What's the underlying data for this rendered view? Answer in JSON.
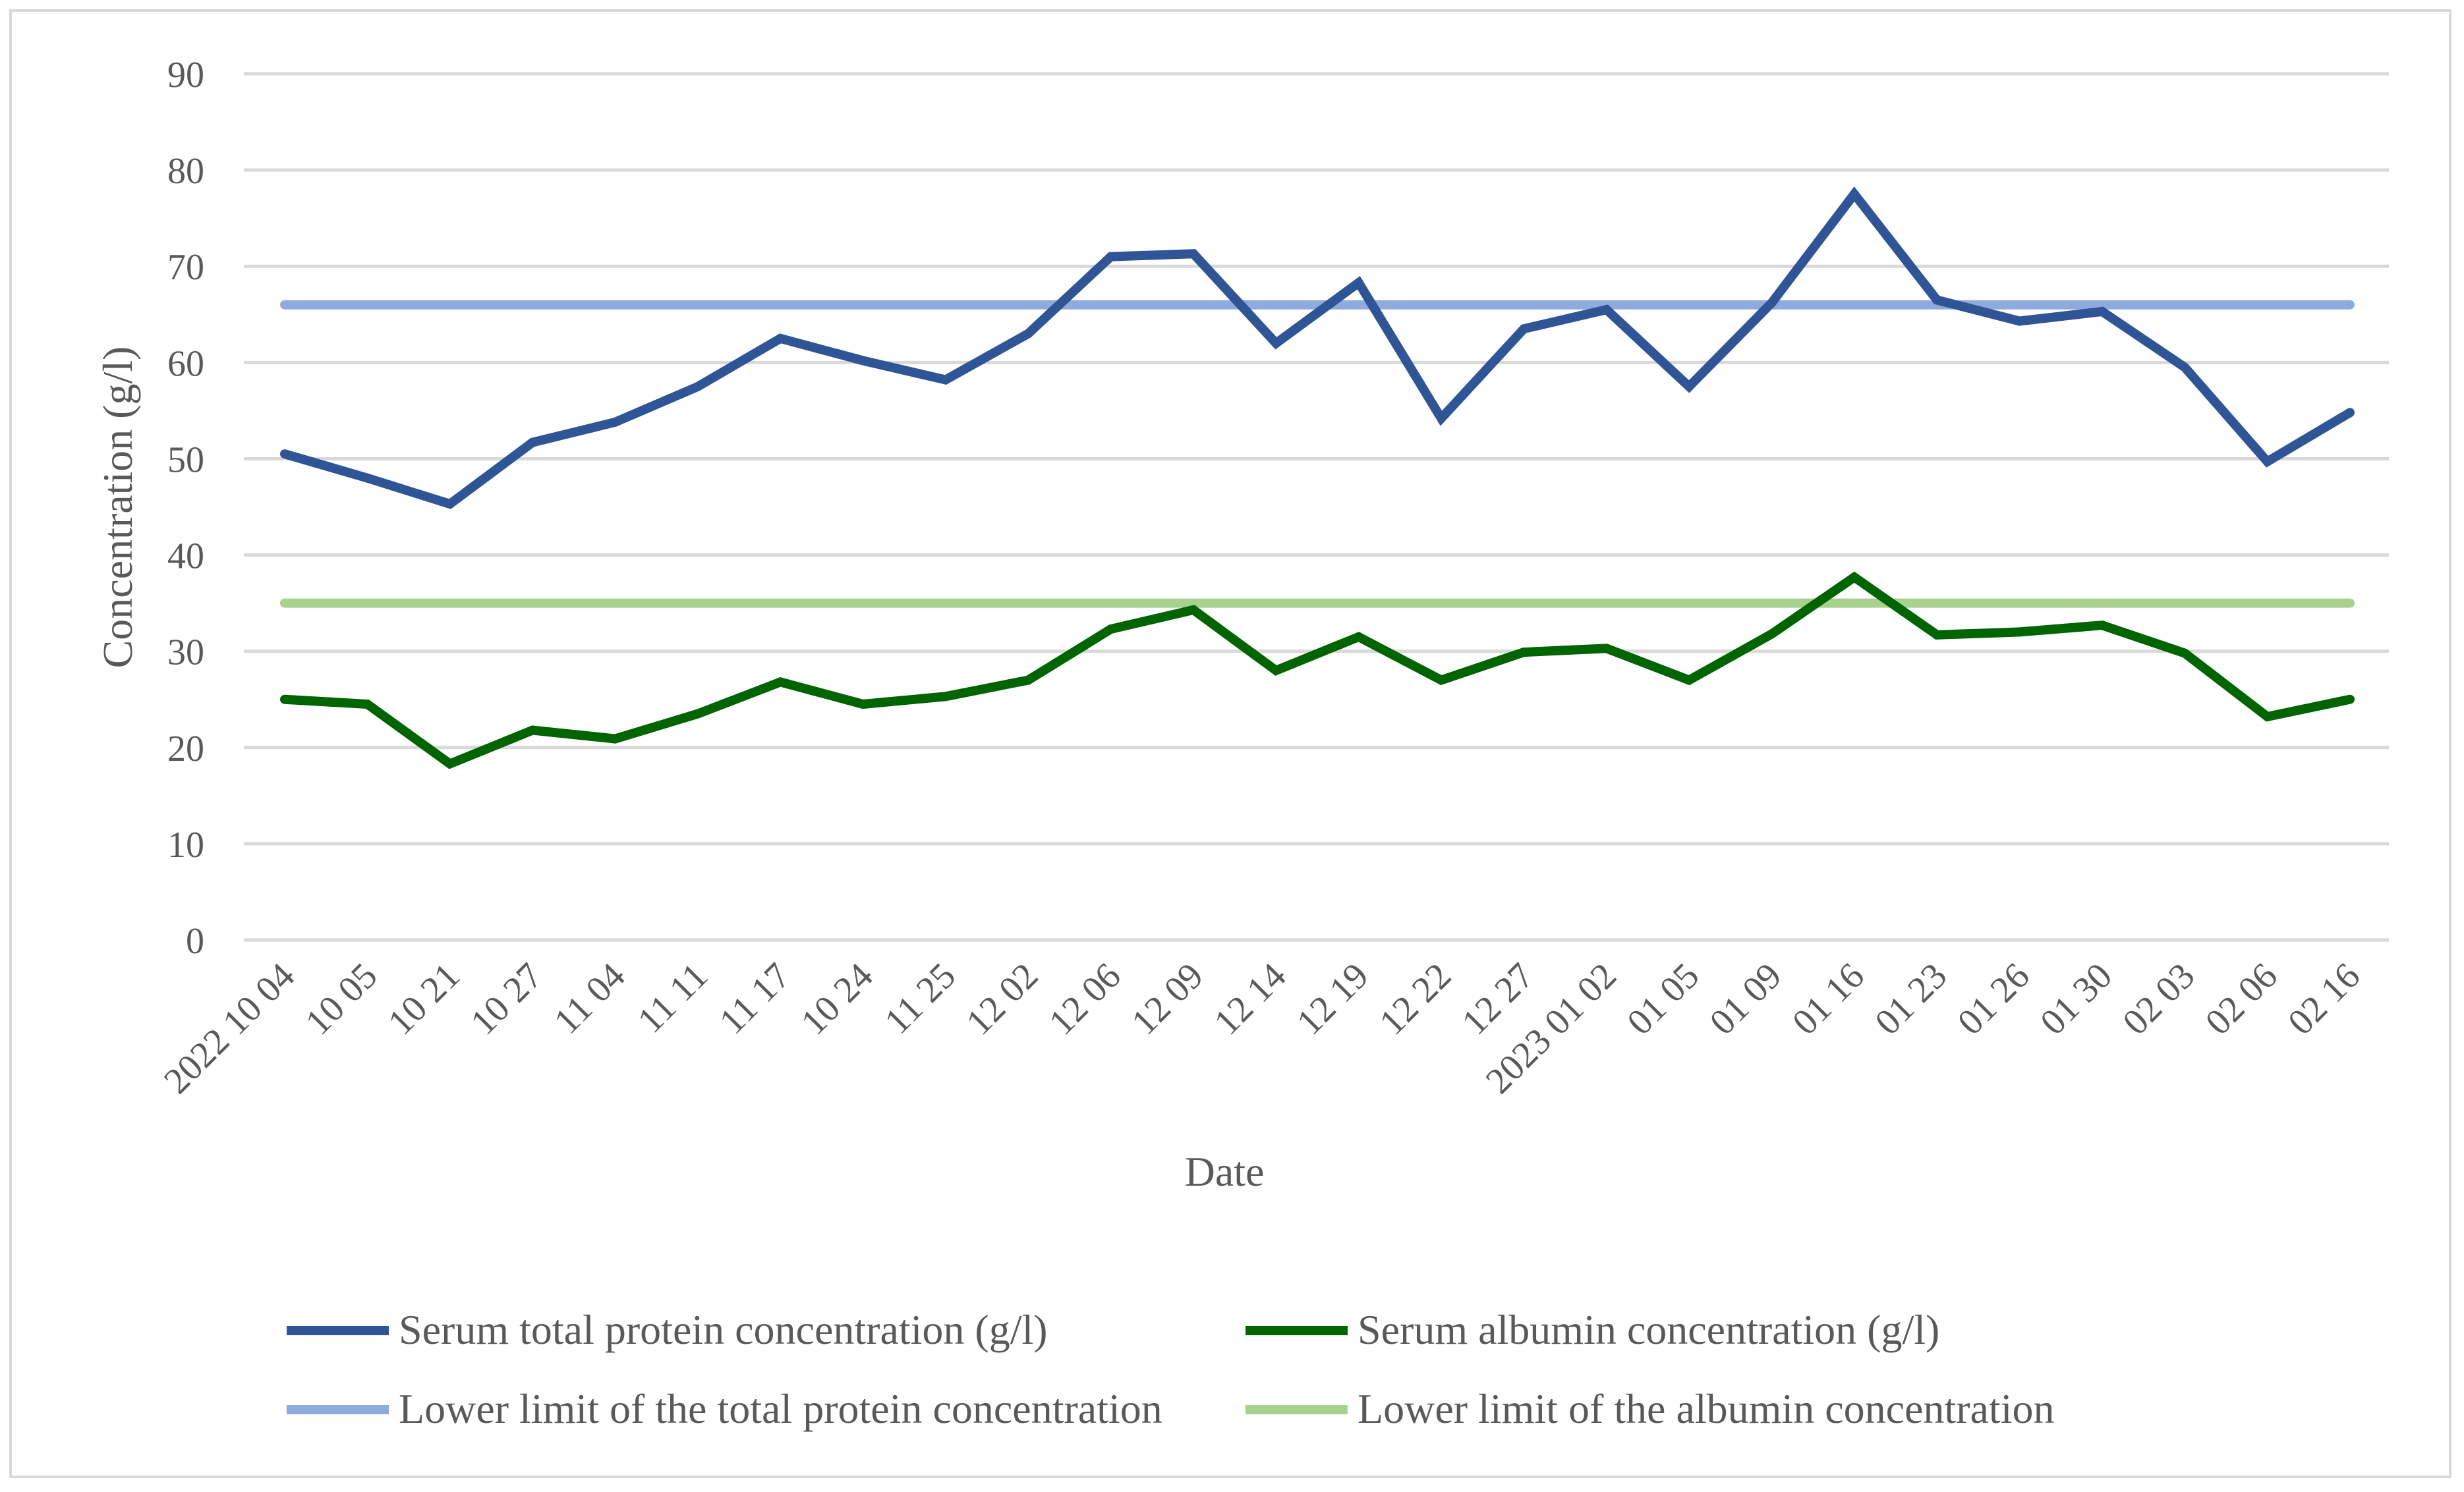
{
  "chart_data": {
    "type": "line",
    "title": "",
    "xlabel": "Date",
    "ylabel": "Concentration (g/l)",
    "ylim": [
      0,
      90
    ],
    "yticks": [
      0,
      10,
      20,
      30,
      40,
      50,
      60,
      70,
      80,
      90
    ],
    "grid": true,
    "legend_position": "bottom",
    "categories": [
      "2022 10 04",
      "10 05",
      "10 21",
      "10 27",
      "11 04",
      "11 11",
      "11 17",
      "10 24",
      "11 25",
      "12 02",
      "12 06",
      "12 09",
      "12 14",
      "12 19",
      "12 22",
      "12 27",
      "2023 01 02",
      "01 05",
      "01 09",
      "01 16",
      "01 23",
      "01 26",
      "01 30",
      "02 03",
      "02 06",
      "02 16"
    ],
    "series": [
      {
        "name": "Serum total protein concentration  (g/l)",
        "color": "#2f5597",
        "values": [
          50.5,
          48,
          45.3,
          51.7,
          53.8,
          57.5,
          62.5,
          60.2,
          58.2,
          63,
          71,
          71.3,
          62,
          68.3,
          54.2,
          63.5,
          65.5,
          57.5,
          66.2,
          77.5,
          66.5,
          64.3,
          65.3,
          59.5,
          49.7,
          54.8
        ]
      },
      {
        "name": "Serum albumin concentration (g/l)",
        "color": "#006400",
        "values": [
          25,
          24.5,
          18.3,
          21.8,
          20.9,
          23.5,
          26.8,
          24.5,
          25.3,
          27,
          32.3,
          34.3,
          28,
          31.5,
          27,
          29.9,
          30.3,
          27,
          31.8,
          37.7,
          31.7,
          32,
          32.7,
          29.8,
          23.2,
          25
        ]
      },
      {
        "name": "Lower limit of the total protein concentration",
        "color": "#8faadc",
        "values": [
          66,
          66,
          66,
          66,
          66,
          66,
          66,
          66,
          66,
          66,
          66,
          66,
          66,
          66,
          66,
          66,
          66,
          66,
          66,
          66,
          66,
          66,
          66,
          66,
          66,
          66
        ]
      },
      {
        "name": "Lower limit of the albumin concentration",
        "color": "#a9d18e",
        "values": [
          35,
          35,
          35,
          35,
          35,
          35,
          35,
          35,
          35,
          35,
          35,
          35,
          35,
          35,
          35,
          35,
          35,
          35,
          35,
          35,
          35,
          35,
          35,
          35,
          35,
          35
        ]
      }
    ]
  },
  "colors": {
    "grid": "#d9d9d9",
    "text": "#595959",
    "frame": "#d9d9d9"
  }
}
